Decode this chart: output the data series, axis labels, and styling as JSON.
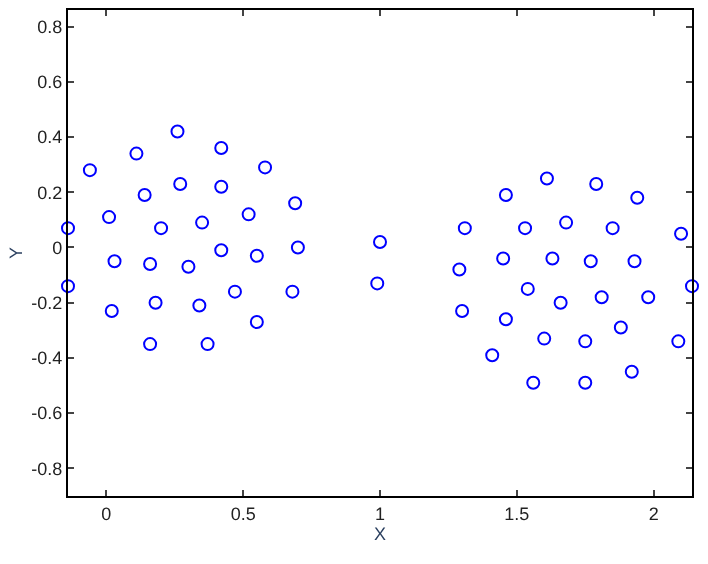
{
  "chart_data": {
    "type": "scatter",
    "xlabel": "X",
    "ylabel": "Y",
    "marker": "circle",
    "xlim": [
      -0.14,
      2.14
    ],
    "ylim": [
      -0.9,
      0.86
    ],
    "xticks": [
      0,
      0.5,
      1,
      1.5,
      2
    ],
    "yticks": [
      -0.8,
      -0.6,
      -0.4,
      -0.2,
      0,
      0.2,
      0.4,
      0.6,
      0.8
    ],
    "series": [
      {
        "color": "#0000ff",
        "x": [
          -0.14,
          -0.14,
          -0.06,
          0.01,
          0.03,
          0.02,
          0.11,
          0.14,
          0.16,
          0.18,
          0.16,
          0.2,
          0.26,
          0.27,
          0.3,
          0.34,
          0.35,
          0.37,
          0.42,
          0.42,
          0.42,
          0.47,
          0.52,
          0.55,
          0.55,
          0.58,
          0.68,
          0.69,
          0.7,
          1.0,
          0.99,
          1.29,
          1.31,
          1.3,
          1.41,
          1.45,
          1.46,
          1.46,
          1.53,
          1.54,
          1.56,
          1.6,
          1.61,
          1.63,
          1.66,
          1.68,
          1.75,
          1.75,
          1.77,
          1.79,
          1.81,
          1.85,
          1.88,
          1.92,
          1.93,
          1.94,
          1.98,
          2.09,
          2.1,
          2.14
        ],
        "values": [
          0.07,
          -0.14,
          0.28,
          0.11,
          -0.05,
          -0.23,
          0.34,
          0.19,
          -0.06,
          -0.2,
          -0.35,
          0.07,
          0.42,
          0.23,
          -0.07,
          -0.21,
          0.09,
          -0.35,
          -0.01,
          0.36,
          0.22,
          -0.16,
          0.12,
          -0.03,
          -0.27,
          0.29,
          -0.16,
          0.16,
          0.0,
          0.02,
          -0.13,
          -0.08,
          0.07,
          -0.23,
          -0.39,
          -0.04,
          0.19,
          -0.26,
          0.07,
          -0.15,
          -0.49,
          -0.33,
          0.25,
          -0.04,
          -0.2,
          0.09,
          -0.49,
          -0.34,
          -0.05,
          0.23,
          -0.18,
          0.07,
          -0.29,
          -0.45,
          -0.05,
          0.18,
          -0.18,
          -0.34,
          0.05,
          -0.14
        ]
      }
    ]
  }
}
